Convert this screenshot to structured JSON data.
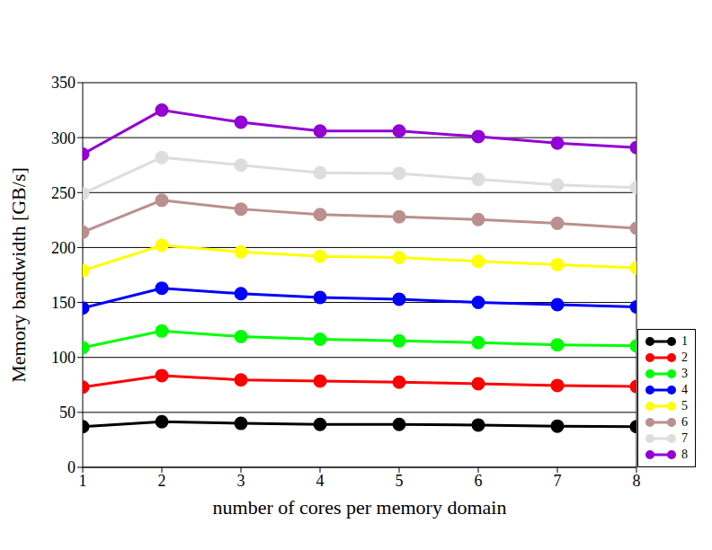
{
  "chart_data": {
    "type": "line",
    "xlabel": "number of cores per memory domain",
    "ylabel": "Memory bandwidth [GB/s]",
    "x": [
      1,
      2,
      3,
      4,
      5,
      6,
      7,
      8
    ],
    "xlim": [
      1,
      8
    ],
    "xticks": [
      1,
      2,
      3,
      4,
      5,
      6,
      7,
      8
    ],
    "ylim": [
      0,
      350
    ],
    "yticks": [
      0,
      50,
      100,
      150,
      200,
      250,
      300,
      350
    ],
    "grid": true,
    "legend": "right",
    "marker": "circle",
    "series": [
      {
        "name": "1",
        "color": "#000000",
        "values": [
          37,
          41.5,
          40,
          39,
          39,
          38.5,
          37.5,
          37
        ]
      },
      {
        "name": "2",
        "color": "#ff0000",
        "values": [
          73,
          83.5,
          79.5,
          78.5,
          77.5,
          76,
          74.5,
          73.5
        ]
      },
      {
        "name": "3",
        "color": "#00ff00",
        "values": [
          109,
          124,
          119,
          116.5,
          115,
          113.5,
          111.5,
          110.5
        ]
      },
      {
        "name": "4",
        "color": "#0000ff",
        "values": [
          145,
          163,
          158,
          154.5,
          153,
          150,
          148,
          146
        ]
      },
      {
        "name": "5",
        "color": "#ffff00",
        "values": [
          179,
          202,
          196,
          192,
          191,
          187.5,
          184.5,
          181.5
        ]
      },
      {
        "name": "6",
        "color": "#bc8f8f",
        "values": [
          214,
          243,
          235,
          230,
          228,
          225.5,
          222,
          217.5
        ]
      },
      {
        "name": "7",
        "color": "#dddddd",
        "values": [
          249,
          282,
          275,
          268,
          267.5,
          262,
          257,
          254.5
        ]
      },
      {
        "name": "8",
        "color": "#9400d3",
        "values": [
          285,
          325,
          314,
          306,
          306,
          301,
          295,
          291
        ]
      }
    ]
  }
}
